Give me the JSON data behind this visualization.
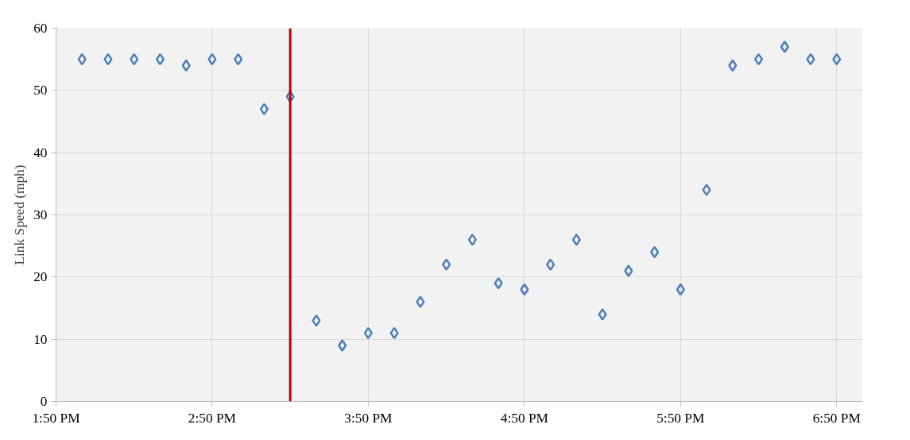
{
  "chart_data": {
    "type": "scatter",
    "ylabel": "Link Speed (mph)",
    "x": [
      14,
      14.1667,
      14.3333,
      14.5,
      14.6667,
      14.8333,
      15,
      15.1667,
      15.3333,
      15.5,
      15.6667,
      15.8333,
      16,
      16.1667,
      16.3333,
      16.5,
      16.6667,
      16.8333,
      17,
      17.1667,
      17.3333,
      17.5,
      17.6667,
      17.8333,
      18,
      18.1667,
      18.3333,
      18.5,
      18.6667,
      18.8333
    ],
    "series": [
      {
        "color": "#4a7ebb",
        "values": [
          55,
          55,
          55,
          55,
          54,
          55,
          55,
          47,
          49,
          13,
          9,
          11,
          11,
          16,
          22,
          26,
          19,
          18,
          22,
          26,
          14,
          21,
          24,
          18,
          34,
          54,
          55,
          57,
          55,
          55
        ]
      }
    ],
    "xlim": [
      13.8333,
      19.0
    ],
    "xticks": [
      {
        "value": 13.8333,
        "label": "1:50 PM"
      },
      {
        "value": 14.8333,
        "label": "2:50 PM"
      },
      {
        "value": 15.8333,
        "label": "3:50 PM"
      },
      {
        "value": 16.8333,
        "label": "4:50 PM"
      },
      {
        "value": 17.8333,
        "label": "5:50 PM"
      },
      {
        "value": 18.8333,
        "label": "6:50 PM"
      }
    ],
    "ylim": [
      0,
      60
    ],
    "yticks": [
      0,
      10,
      20,
      30,
      40,
      50,
      60
    ],
    "ref_lines": [
      {
        "axis": "x",
        "value": 15.3333,
        "label": null,
        "color": "#c00000"
      }
    ],
    "grid": true,
    "marker": "diamond"
  }
}
